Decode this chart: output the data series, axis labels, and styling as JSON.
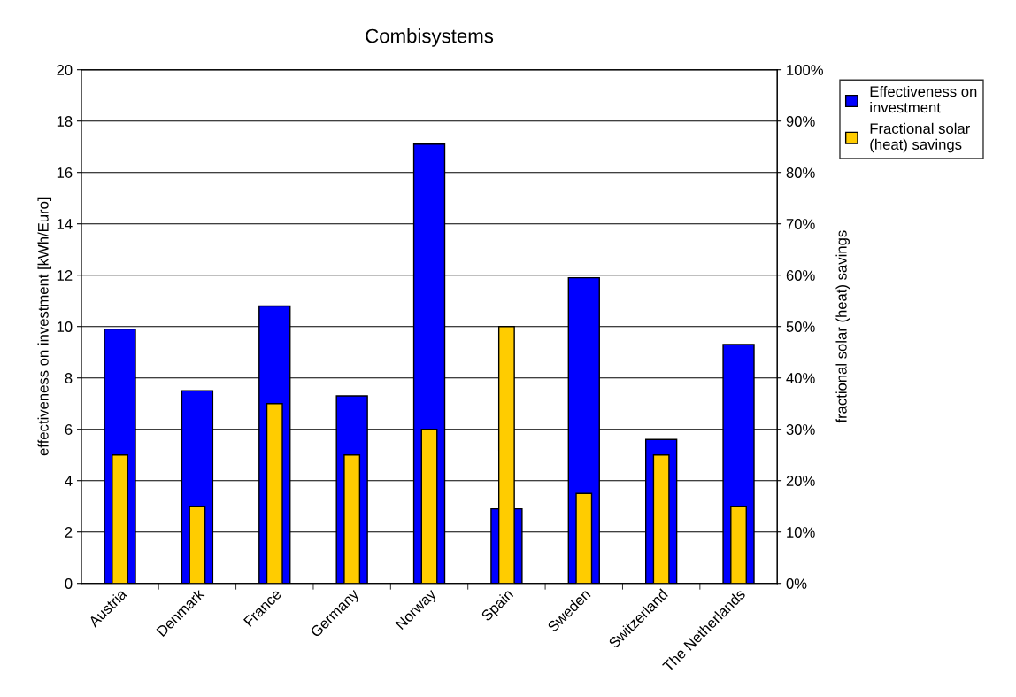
{
  "chart_data": {
    "type": "bar",
    "title": "Combisystems",
    "ylabel": "effectiveness on investment [kWh/Euro]",
    "y2label": "fractional solar (heat) savings",
    "categories": [
      "Austria",
      "Denmark",
      "France",
      "Germany",
      "Norway",
      "Spain",
      "Sweden",
      "Switzerland",
      "The Netherlands"
    ],
    "series": [
      {
        "name": "Effectiveness on investment",
        "color": "#0000ff",
        "values": [
          9.9,
          7.5,
          10.8,
          7.3,
          17.1,
          2.9,
          11.9,
          5.6,
          9.3
        ]
      },
      {
        "name": "Fractional solar (heat) savings",
        "color": "#ffcc00",
        "axis": "y2",
        "values": [
          25,
          15,
          35,
          25,
          30,
          50,
          17.5,
          25,
          15
        ]
      }
    ],
    "ylim": [
      0,
      20
    ],
    "yticks": [
      0,
      2,
      4,
      6,
      8,
      10,
      12,
      14,
      16,
      18,
      20
    ],
    "y2lim": [
      0,
      100
    ],
    "y2ticks": [
      {
        "value": 0,
        "label": "0%"
      },
      {
        "value": 10,
        "label": "10%"
      },
      {
        "value": 20,
        "label": "20%"
      },
      {
        "value": 30,
        "label": "30%"
      },
      {
        "value": 40,
        "label": "40%"
      },
      {
        "value": 50,
        "label": "50%"
      },
      {
        "value": 60,
        "label": "60%"
      },
      {
        "value": 70,
        "label": "70%"
      },
      {
        "value": 80,
        "label": "80%"
      },
      {
        "value": 90,
        "label": "90%"
      },
      {
        "value": 100,
        "label": "100%"
      }
    ],
    "grid": "y",
    "legend": "right"
  }
}
